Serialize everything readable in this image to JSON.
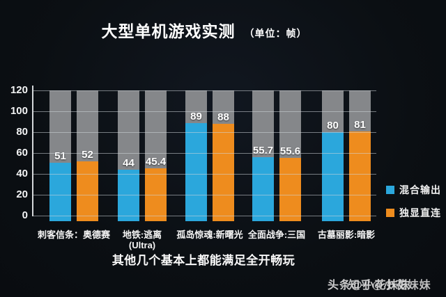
{
  "title": {
    "main": "大型单机游戏实测",
    "unit": "（单位：帧）"
  },
  "chart_data": {
    "type": "bar",
    "title": "大型单机游戏实测",
    "unit_label": "（单位：帧）",
    "categories": [
      "刺客信条：奥德赛",
      "地铁:逃离\n(Ultra)",
      "孤岛惊魂:新曙光",
      "全面战争:三国",
      "古墓丽影:暗影"
    ],
    "series": [
      {
        "name": "混合输出",
        "color": "#2ba7dc",
        "values": [
          51,
          44,
          89,
          55.7,
          80
        ]
      },
      {
        "name": "独显直连",
        "color": "#ee8c1e",
        "values": [
          52,
          45.4,
          88,
          55.6,
          81
        ]
      }
    ],
    "ylim": [
      0,
      120
    ],
    "yticks": [
      0,
      20,
      40,
      60,
      80,
      100,
      120
    ],
    "grid": true,
    "legend_position": "right",
    "track_color": "#85878a",
    "background_color": "#0b0f13",
    "value_labels": true
  },
  "caption": "其他几个基本上都能满足全开畅玩",
  "watermarks": [
    "头条@小花妹妹",
    "知乎@小花妹妹"
  ]
}
